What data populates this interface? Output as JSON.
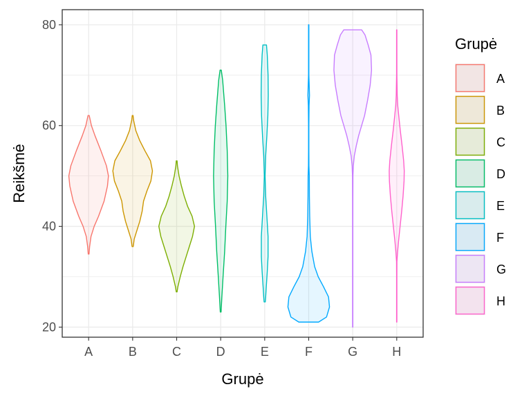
{
  "chart_data": {
    "type": "violin",
    "xlabel": "Grupė",
    "ylabel": "Reikšmė",
    "ylim": [
      18,
      83
    ],
    "yticks": [
      20,
      40,
      60,
      80
    ],
    "categories": [
      "A",
      "B",
      "C",
      "D",
      "E",
      "F",
      "G",
      "H"
    ],
    "grid": true,
    "legend": {
      "title": "Grupė",
      "position": "right"
    },
    "series": [
      {
        "name": "A",
        "color": "#F8766D",
        "profile": [
          [
            34.5,
            0.02
          ],
          [
            36,
            0.05
          ],
          [
            38,
            0.12
          ],
          [
            40,
            0.28
          ],
          [
            42,
            0.5
          ],
          [
            45,
            0.78
          ],
          [
            48,
            0.95
          ],
          [
            50,
            1.0
          ],
          [
            52,
            0.9
          ],
          [
            55,
            0.62
          ],
          [
            58,
            0.32
          ],
          [
            60,
            0.14
          ],
          [
            62,
            0.03
          ]
        ]
      },
      {
        "name": "B",
        "color": "#CD9600",
        "profile": [
          [
            36,
            0.03
          ],
          [
            37.5,
            0.08
          ],
          [
            39,
            0.2
          ],
          [
            41,
            0.36
          ],
          [
            43,
            0.48
          ],
          [
            45,
            0.55
          ],
          [
            47,
            0.72
          ],
          [
            49,
            0.92
          ],
          [
            51,
            1.0
          ],
          [
            53,
            0.9
          ],
          [
            55,
            0.62
          ],
          [
            57,
            0.36
          ],
          [
            59,
            0.16
          ],
          [
            61,
            0.05
          ],
          [
            62,
            0.02
          ]
        ]
      },
      {
        "name": "C",
        "color": "#7CAE00",
        "profile": [
          [
            27,
            0.02
          ],
          [
            28,
            0.06
          ],
          [
            30,
            0.18
          ],
          [
            32,
            0.32
          ],
          [
            34,
            0.48
          ],
          [
            36,
            0.64
          ],
          [
            38,
            0.8
          ],
          [
            40,
            0.9
          ],
          [
            42,
            0.78
          ],
          [
            44,
            0.55
          ],
          [
            46,
            0.38
          ],
          [
            48,
            0.24
          ],
          [
            50,
            0.12
          ],
          [
            52,
            0.04
          ],
          [
            53,
            0.02
          ]
        ]
      },
      {
        "name": "D",
        "color": "#00BE67",
        "profile": [
          [
            23,
            0.02
          ],
          [
            26,
            0.06
          ],
          [
            30,
            0.12
          ],
          [
            35,
            0.2
          ],
          [
            40,
            0.26
          ],
          [
            45,
            0.33
          ],
          [
            50,
            0.36
          ],
          [
            55,
            0.33
          ],
          [
            60,
            0.27
          ],
          [
            64,
            0.2
          ],
          [
            67,
            0.14
          ],
          [
            69,
            0.1
          ],
          [
            71,
            0.03
          ]
        ]
      },
      {
        "name": "E",
        "color": "#00BFC4",
        "profile": [
          [
            25,
            0.03
          ],
          [
            26,
            0.05
          ],
          [
            28,
            0.08
          ],
          [
            31,
            0.13
          ],
          [
            34,
            0.17
          ],
          [
            38,
            0.17
          ],
          [
            42,
            0.11
          ],
          [
            46,
            0.05
          ],
          [
            50,
            0.02
          ],
          [
            54,
            0.05
          ],
          [
            58,
            0.11
          ],
          [
            62,
            0.16
          ],
          [
            66,
            0.18
          ],
          [
            70,
            0.17
          ],
          [
            74,
            0.13
          ],
          [
            76,
            0.09
          ]
        ]
      },
      {
        "name": "F",
        "color": "#00A9FF",
        "profile": [
          [
            21,
            0.5
          ],
          [
            22,
            0.9
          ],
          [
            24,
            1.05
          ],
          [
            26,
            1.0
          ],
          [
            28,
            0.75
          ],
          [
            30,
            0.48
          ],
          [
            32,
            0.3
          ],
          [
            35,
            0.16
          ],
          [
            38,
            0.08
          ],
          [
            42,
            0.05
          ],
          [
            46,
            0.035
          ],
          [
            50,
            0.03
          ],
          [
            52,
            0.012
          ],
          [
            55,
            0.008
          ],
          [
            60,
            0.008
          ],
          [
            64,
            0.018
          ],
          [
            66,
            0.04
          ],
          [
            68,
            0.025
          ],
          [
            70,
            0.008
          ],
          [
            75,
            0.008
          ],
          [
            80,
            0.008
          ]
        ]
      },
      {
        "name": "G",
        "color": "#C77CFF",
        "profile": [
          [
            20,
            0.007
          ],
          [
            25,
            0.007
          ],
          [
            30,
            0.007
          ],
          [
            35,
            0.007
          ],
          [
            40,
            0.007
          ],
          [
            45,
            0.008
          ],
          [
            50,
            0.012
          ],
          [
            52,
            0.03
          ],
          [
            54,
            0.08
          ],
          [
            56,
            0.18
          ],
          [
            58,
            0.3
          ],
          [
            60,
            0.45
          ],
          [
            62,
            0.6
          ],
          [
            65,
            0.75
          ],
          [
            68,
            0.88
          ],
          [
            71,
            0.95
          ],
          [
            74,
            0.92
          ],
          [
            76,
            0.78
          ],
          [
            78,
            0.62
          ],
          [
            79,
            0.45
          ]
        ]
      },
      {
        "name": "H",
        "color": "#FF61CC",
        "profile": [
          [
            21,
            0.007
          ],
          [
            25,
            0.007
          ],
          [
            30,
            0.007
          ],
          [
            33,
            0.01
          ],
          [
            35,
            0.045
          ],
          [
            37,
            0.09
          ],
          [
            40,
            0.17
          ],
          [
            43,
            0.25
          ],
          [
            46,
            0.32
          ],
          [
            49,
            0.37
          ],
          [
            51,
            0.38
          ],
          [
            53,
            0.35
          ],
          [
            56,
            0.27
          ],
          [
            59,
            0.18
          ],
          [
            62,
            0.1
          ],
          [
            64,
            0.05
          ],
          [
            66,
            0.025
          ],
          [
            70,
            0.008
          ],
          [
            75,
            0.007
          ],
          [
            79,
            0.007
          ]
        ]
      }
    ]
  }
}
